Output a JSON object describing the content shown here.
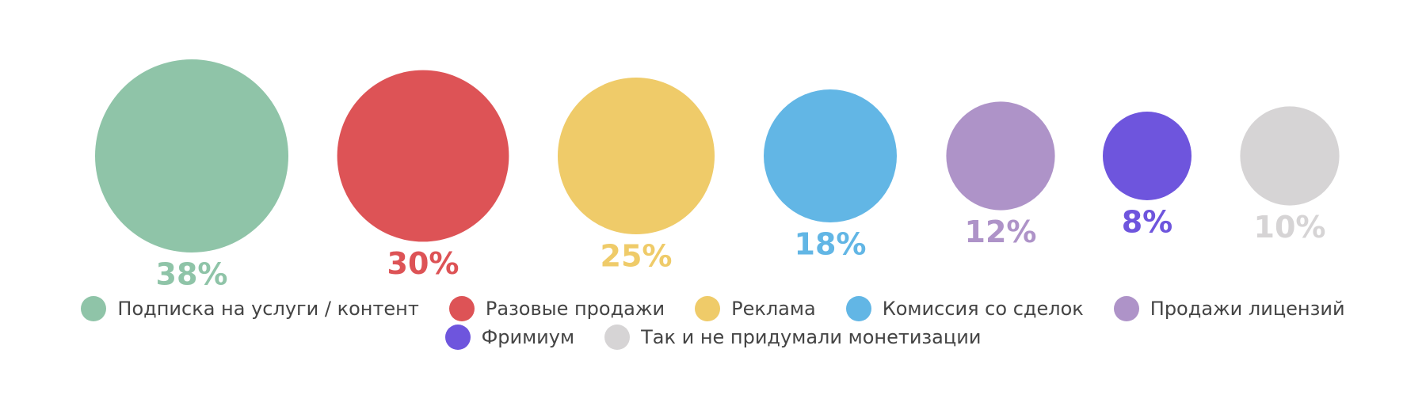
{
  "chart_data": {
    "type": "bubble",
    "title": "",
    "categories": [
      "Подписка на услуги / контент",
      "Разовые продажи",
      "Реклама",
      "Комиссия со сделок",
      "Продажи лицензий",
      "Фримиум",
      "Так и не придумали монетизации"
    ],
    "values": [
      38,
      30,
      25,
      18,
      12,
      8,
      10
    ],
    "value_labels": [
      "38%",
      "30%",
      "25%",
      "18%",
      "12%",
      "8%",
      "10%"
    ],
    "colors": [
      "#8fc4a8",
      "#dd5356",
      "#efcb69",
      "#62b6e5",
      "#ae93c8",
      "#6e55dd",
      "#d6d4d5"
    ],
    "unit": "%",
    "legend_placement": "bottom",
    "grid": false
  }
}
